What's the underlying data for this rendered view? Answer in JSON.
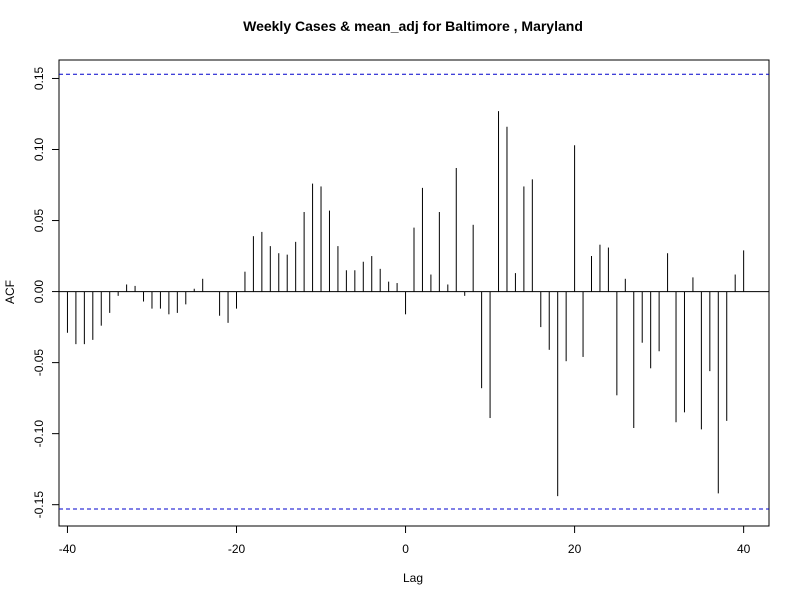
{
  "chart_data": {
    "type": "bar",
    "title": "Weekly Cases & mean_adj for Baltimore , Maryland",
    "xlabel": "Lag",
    "ylabel": "ACF",
    "xlim": [
      -41,
      43
    ],
    "ylim": [
      -0.165,
      0.163
    ],
    "x_ticks": [
      -40,
      -20,
      0,
      20,
      40
    ],
    "x_tick_labels": [
      "-40",
      "-20",
      "0",
      "20",
      "40"
    ],
    "y_ticks": [
      -0.15,
      -0.1,
      -0.05,
      0.0,
      0.05,
      0.1,
      0.15
    ],
    "y_tick_labels": [
      "-0.15",
      "-0.10",
      "-0.05",
      "0.00",
      "0.05",
      "0.10",
      "0.15"
    ],
    "confidence_bounds": [
      0.153,
      -0.153
    ],
    "colors": {
      "bars": "#000000",
      "bounds": "#0000cc",
      "zero_line": "#000000"
    },
    "lags": [
      -40,
      -39,
      -38,
      -37,
      -36,
      -35,
      -34,
      -33,
      -32,
      -31,
      -30,
      -29,
      -28,
      -27,
      -26,
      -25,
      -24,
      -23,
      -22,
      -21,
      -20,
      -19,
      -18,
      -17,
      -16,
      -15,
      -14,
      -13,
      -12,
      -11,
      -10,
      -9,
      -8,
      -7,
      -6,
      -5,
      -4,
      -3,
      -2,
      -1,
      0,
      1,
      2,
      3,
      4,
      5,
      6,
      7,
      8,
      9,
      10,
      11,
      12,
      13,
      14,
      15,
      16,
      17,
      18,
      19,
      20,
      21,
      22,
      23,
      24,
      25,
      26,
      27,
      28,
      29,
      30,
      31,
      32,
      33,
      34,
      35,
      36,
      37,
      38,
      39,
      40
    ],
    "values": [
      -0.029,
      -0.037,
      -0.037,
      -0.034,
      -0.024,
      -0.015,
      -0.003,
      0.005,
      0.004,
      -0.007,
      -0.012,
      -0.012,
      -0.016,
      -0.015,
      -0.009,
      0.002,
      0.009,
      0.0,
      -0.017,
      -0.022,
      -0.012,
      0.014,
      0.039,
      0.042,
      0.032,
      0.027,
      0.026,
      0.035,
      0.056,
      0.076,
      0.074,
      0.057,
      0.032,
      0.015,
      0.015,
      0.021,
      0.025,
      0.016,
      0.007,
      0.006,
      -0.016,
      0.045,
      0.073,
      0.012,
      0.056,
      0.005,
      0.087,
      -0.003,
      0.047,
      -0.068,
      -0.089,
      0.127,
      0.116,
      0.013,
      0.074,
      0.079,
      -0.025,
      -0.041,
      -0.144,
      -0.049,
      0.103,
      -0.046,
      0.025,
      0.033,
      0.031,
      -0.073,
      0.009,
      -0.096,
      -0.036,
      -0.054,
      -0.042,
      0.027,
      -0.092,
      -0.085,
      0.01,
      -0.097,
      -0.056,
      -0.142,
      -0.091,
      0.012,
      0.029
    ]
  }
}
